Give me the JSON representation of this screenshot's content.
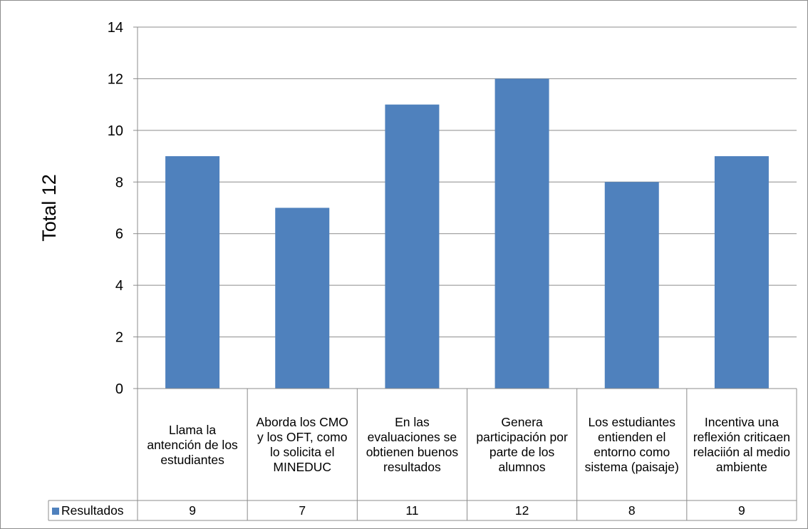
{
  "chart_data": {
    "type": "bar",
    "ylabel": "Total 12",
    "ylim": [
      0,
      14
    ],
    "yticks": [
      0,
      2,
      4,
      6,
      8,
      10,
      12,
      14
    ],
    "grid": true,
    "categories": [
      "Llama la antención de los estudiantes",
      "Aborda los CMO y los OFT, como lo solicita el MINEDUC",
      "En las evaluaciones se obtienen buenos resultados",
      "Genera participación por parte de los alumnos",
      "Los estudiantes entienden el entorno como sistema (paisaje)",
      "Incentiva una reflexión criticaen relaciión al medio ambiente"
    ],
    "series": [
      {
        "name": "Resultados",
        "values": [
          9,
          7,
          11,
          12,
          8,
          9
        ],
        "color": "#4f81bd"
      }
    ],
    "legend": "data-table"
  }
}
